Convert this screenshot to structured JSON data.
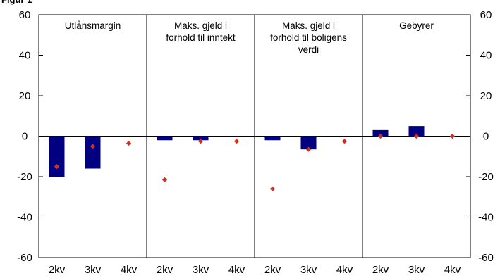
{
  "caption_fragment": "Figur 1",
  "chart_data": {
    "type": "bar",
    "ylim": [
      -60,
      60
    ],
    "yticks": [
      -60,
      -40,
      -20,
      0,
      20,
      40,
      60
    ],
    "panels": [
      {
        "title_lines": [
          "Utlånsmargin"
        ],
        "categories": [
          "2kv",
          "3kv",
          "4kv"
        ],
        "values": [
          -20,
          -16,
          null
        ],
        "markers": [
          -15,
          -5,
          -3.5
        ]
      },
      {
        "title_lines": [
          "Maks. gjeld i",
          "forhold til inntekt"
        ],
        "categories": [
          "2kv",
          "3kv",
          "4kv"
        ],
        "values": [
          -2,
          -2,
          null
        ],
        "markers": [
          -21.5,
          -2.5,
          -2.5
        ]
      },
      {
        "title_lines": [
          "Maks. gjeld i",
          "forhold til boligens",
          "verdi"
        ],
        "categories": [
          "2kv",
          "3kv",
          "4kv"
        ],
        "values": [
          -2,
          -6.5,
          null
        ],
        "markers": [
          -26,
          -6.5,
          -2.5
        ]
      },
      {
        "title_lines": [
          "Gebyrer"
        ],
        "categories": [
          "2kv",
          "3kv",
          "4kv"
        ],
        "values": [
          3,
          5,
          null
        ],
        "markers": [
          0,
          0,
          0
        ]
      }
    ],
    "bar_color": "#000080",
    "marker_color": "#d03020",
    "grid": false
  }
}
